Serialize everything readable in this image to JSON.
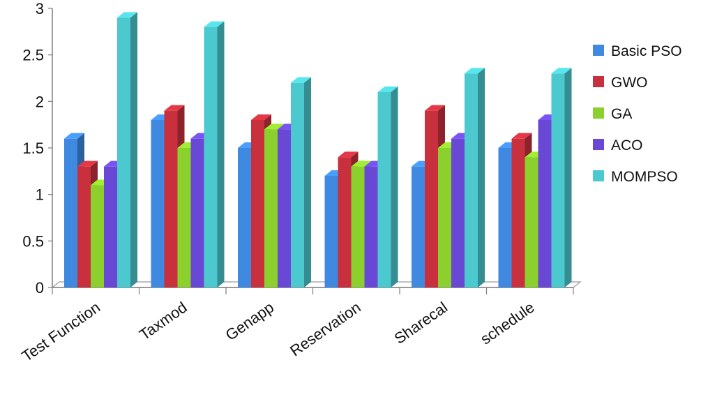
{
  "chart_data": {
    "type": "bar",
    "style": "3d-clustered-column",
    "title": "",
    "xlabel": "",
    "ylabel": "",
    "ylim": [
      0,
      3
    ],
    "yticks": [
      "0",
      "0.5",
      "1",
      "1.5",
      "2",
      "2.5",
      "3"
    ],
    "categories": [
      "Test Function",
      "Taxmod",
      "Genapp",
      "Reservation",
      "Sharecal",
      "schedule"
    ],
    "series": [
      {
        "name": "Basic PSO",
        "color": "#3f8ae0",
        "values": [
          1.6,
          1.8,
          1.5,
          1.2,
          1.3,
          1.5
        ]
      },
      {
        "name": "GWO",
        "color": "#c8303e",
        "values": [
          1.3,
          1.9,
          1.8,
          1.4,
          1.9,
          1.6
        ]
      },
      {
        "name": "GA",
        "color": "#8bd02c",
        "values": [
          1.1,
          1.5,
          1.7,
          1.3,
          1.5,
          1.4
        ]
      },
      {
        "name": "ACO",
        "color": "#6a48d6",
        "values": [
          1.3,
          1.6,
          1.7,
          1.3,
          1.6,
          1.8
        ]
      },
      {
        "name": "MOMPSO",
        "color": "#4cc8cf",
        "values": [
          2.9,
          2.8,
          2.2,
          2.1,
          2.3,
          2.3
        ]
      }
    ],
    "legend_position": "right",
    "grid": false
  }
}
